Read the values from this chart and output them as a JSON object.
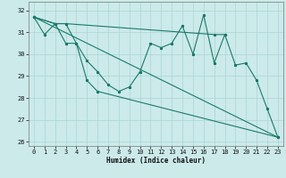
{
  "xlabel": "Humidex (Indice chaleur)",
  "xlim": [
    -0.5,
    23.5
  ],
  "ylim": [
    25.8,
    32.4
  ],
  "yticks": [
    26,
    27,
    28,
    29,
    30,
    31,
    32
  ],
  "xticks": [
    0,
    1,
    2,
    3,
    4,
    5,
    6,
    7,
    8,
    9,
    10,
    11,
    12,
    13,
    14,
    15,
    16,
    17,
    18,
    19,
    20,
    21,
    22,
    23
  ],
  "bg_color": "#cceaea",
  "grid_color": "#aad4d4",
  "line_color": "#1a7a6a",
  "series1_x": [
    0,
    1,
    2,
    3,
    4,
    5,
    6,
    7,
    8,
    9,
    10,
    11,
    12,
    13,
    14,
    15,
    16,
    17,
    18,
    19,
    20,
    21,
    22,
    23
  ],
  "series1_y": [
    31.7,
    30.9,
    31.4,
    31.4,
    30.5,
    29.7,
    29.2,
    28.6,
    28.3,
    28.5,
    29.2,
    30.5,
    30.3,
    30.5,
    31.3,
    30.0,
    31.8,
    29.6,
    30.9,
    29.5,
    29.6,
    28.8,
    27.5,
    26.2
  ],
  "series2_x": [
    0,
    2,
    3,
    17,
    18
  ],
  "series2_y": [
    31.7,
    31.4,
    31.4,
    30.9,
    30.9
  ],
  "series3_x": [
    0,
    2,
    3,
    4,
    5,
    6,
    23
  ],
  "series3_y": [
    31.7,
    31.4,
    30.5,
    30.5,
    28.8,
    28.3,
    26.2
  ],
  "series4_x": [
    0,
    23
  ],
  "series4_y": [
    31.7,
    26.2
  ]
}
